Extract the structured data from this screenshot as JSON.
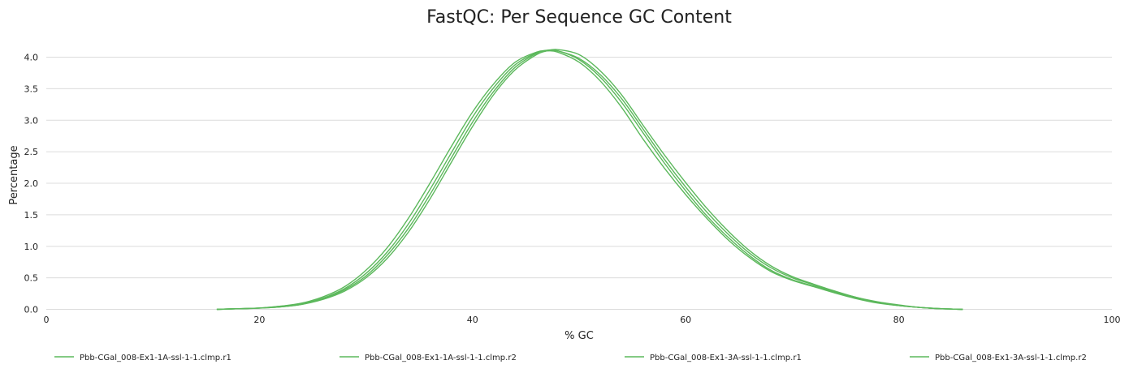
{
  "chart_data": {
    "type": "line",
    "title": "FastQC: Per Sequence GC Content",
    "xlabel": "% GC",
    "ylabel": "Percentage",
    "xlim": [
      0,
      100
    ],
    "ylim": [
      0,
      4.0
    ],
    "xticks": [
      0,
      20,
      40,
      60,
      80,
      100
    ],
    "yticks": [
      0.0,
      0.5,
      1.0,
      1.5,
      2.0,
      2.5,
      3.0,
      3.5,
      4.0
    ],
    "ytick_labels": [
      "0.0",
      "0.5",
      "1.0",
      "1.5",
      "2.0",
      "2.5",
      "3.0",
      "3.5",
      "4.0"
    ],
    "grid": "horizontal",
    "legend": "bottom",
    "series_color": "#5cb85c",
    "series": [
      {
        "name": "Pbb-CGal_008-Ex1-1A-ssl-1-1.clmp.r1",
        "x": [
          16,
          18,
          20,
          22,
          24,
          26,
          28,
          30,
          32,
          34,
          36,
          38,
          40,
          42,
          44,
          46,
          47,
          48,
          50,
          52,
          54,
          56,
          58,
          60,
          62,
          64,
          66,
          68,
          70,
          72,
          74,
          76,
          78,
          80,
          82,
          84,
          86
        ],
        "values": [
          0.0,
          0.01,
          0.02,
          0.05,
          0.1,
          0.2,
          0.36,
          0.62,
          0.98,
          1.45,
          2.0,
          2.58,
          3.13,
          3.58,
          3.92,
          4.08,
          4.1,
          4.08,
          3.92,
          3.62,
          3.2,
          2.7,
          2.24,
          1.82,
          1.44,
          1.1,
          0.82,
          0.6,
          0.46,
          0.36,
          0.26,
          0.17,
          0.1,
          0.06,
          0.03,
          0.01,
          0.0
        ]
      },
      {
        "name": "Pbb-CGal_008-Ex1-1A-ssl-1-1.clmp.r2",
        "x": [
          16,
          18,
          20,
          22,
          24,
          26,
          28,
          30,
          32,
          34,
          36,
          38,
          40,
          42,
          44,
          46,
          47,
          48,
          50,
          52,
          54,
          56,
          58,
          60,
          62,
          64,
          66,
          68,
          70,
          72,
          74,
          76,
          78,
          80,
          82,
          84,
          86
        ],
        "values": [
          0.0,
          0.01,
          0.02,
          0.05,
          0.09,
          0.18,
          0.33,
          0.57,
          0.91,
          1.36,
          1.9,
          2.48,
          3.05,
          3.52,
          3.88,
          4.07,
          4.1,
          4.1,
          3.96,
          3.68,
          3.28,
          2.8,
          2.32,
          1.88,
          1.48,
          1.14,
          0.85,
          0.62,
          0.47,
          0.37,
          0.27,
          0.18,
          0.11,
          0.06,
          0.03,
          0.01,
          0.0
        ]
      },
      {
        "name": "Pbb-CGal_008-Ex1-3A-ssl-1-1.clmp.r1",
        "x": [
          16,
          18,
          20,
          22,
          24,
          26,
          28,
          30,
          32,
          34,
          36,
          38,
          40,
          42,
          44,
          46,
          47,
          48,
          50,
          52,
          54,
          56,
          58,
          60,
          62,
          64,
          66,
          68,
          70,
          72,
          74,
          76,
          78,
          80,
          82,
          84,
          86
        ],
        "values": [
          0.0,
          0.01,
          0.02,
          0.04,
          0.08,
          0.17,
          0.31,
          0.53,
          0.86,
          1.29,
          1.82,
          2.4,
          2.97,
          3.46,
          3.84,
          4.06,
          4.11,
          4.1,
          3.98,
          3.72,
          3.34,
          2.86,
          2.38,
          1.94,
          1.54,
          1.19,
          0.89,
          0.66,
          0.5,
          0.39,
          0.28,
          0.19,
          0.11,
          0.06,
          0.03,
          0.01,
          0.0
        ]
      },
      {
        "name": "Pbb-CGal_008-Ex1-3A-ssl-1-1.clmp.r2",
        "x": [
          16,
          18,
          20,
          22,
          24,
          26,
          28,
          30,
          32,
          34,
          36,
          38,
          40,
          42,
          44,
          46,
          47,
          48,
          50,
          52,
          54,
          56,
          58,
          60,
          62,
          64,
          66,
          68,
          70,
          72,
          74,
          76,
          78,
          80,
          82,
          84,
          86
        ],
        "values": [
          0.0,
          0.01,
          0.02,
          0.04,
          0.08,
          0.16,
          0.29,
          0.5,
          0.81,
          1.23,
          1.75,
          2.33,
          2.9,
          3.41,
          3.8,
          4.04,
          4.1,
          4.12,
          4.04,
          3.78,
          3.4,
          2.92,
          2.45,
          2.01,
          1.6,
          1.24,
          0.93,
          0.69,
          0.52,
          0.4,
          0.29,
          0.19,
          0.12,
          0.07,
          0.03,
          0.01,
          0.0
        ]
      }
    ]
  }
}
